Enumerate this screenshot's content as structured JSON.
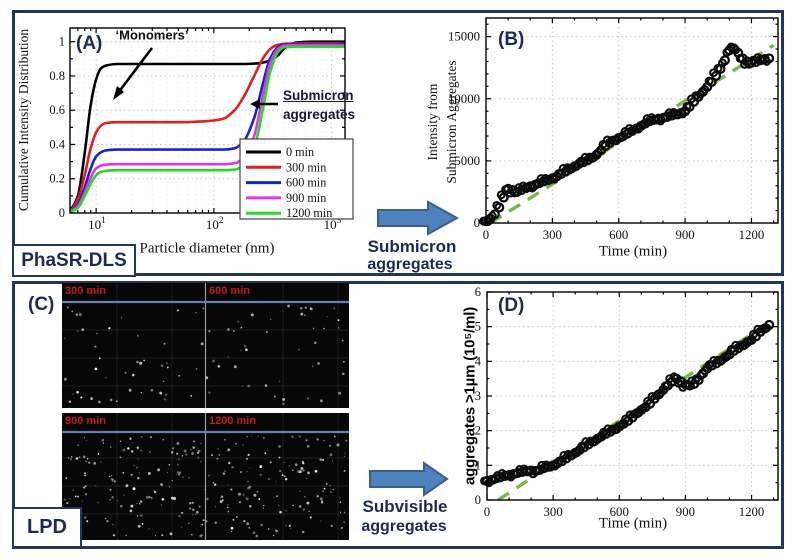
{
  "figure": {
    "sections": [
      {
        "id": "top",
        "label": "PhaSR-DLS"
      },
      {
        "id": "bottom",
        "label": "LPD"
      }
    ],
    "arrows": [
      {
        "line1": "Submicron",
        "line2": "aggregates"
      },
      {
        "line1": "Subvisible",
        "line2": "aggregates"
      }
    ]
  },
  "colors": {
    "navy": "#1b2a55",
    "box_border": "#24365a",
    "arrow_fill": "#4f81bd",
    "arrow_stroke": "#3a5f8f",
    "trend_green": "#7ab648",
    "grid": "#c9c9c9",
    "grid_minor": "#ececec",
    "red_label": "#c11b1b",
    "blue_line": "#637fb7",
    "scatter_black": "#0c0c0c"
  },
  "chart_data": [
    {
      "id": "A",
      "type": "line",
      "panel_label": "(A)",
      "xlabel": "Particle diameter (nm)",
      "ylabel": "Cumulative Intensity Distribution",
      "xscale": "log",
      "xlim": [
        6,
        1300
      ],
      "ylim": [
        0,
        1.08
      ],
      "xticks": [
        10,
        100,
        1000
      ],
      "yticks": [
        0,
        0.2,
        0.4,
        0.6,
        0.8,
        1
      ],
      "grid": true,
      "legend_position": "inside lower right",
      "annotations": {
        "monomers": "‘Monomers’",
        "submicron": "Submicron",
        "submicron2": "aggregates"
      },
      "x": [
        5,
        6,
        7,
        8,
        9,
        10,
        11,
        12,
        15,
        20,
        30,
        50,
        80,
        100,
        120,
        150,
        180,
        220,
        260,
        300,
        350,
        400,
        500,
        700,
        1000,
        2000
      ],
      "series": [
        {
          "name": "0 min",
          "color": "#000000",
          "y": [
            0,
            0.02,
            0.1,
            0.35,
            0.63,
            0.78,
            0.845,
            0.86,
            0.87,
            0.87,
            0.87,
            0.87,
            0.87,
            0.87,
            0.87,
            0.87,
            0.87,
            0.872,
            0.878,
            0.89,
            0.92,
            0.962,
            0.995,
            1.0,
            1.0,
            1.0
          ]
        },
        {
          "name": "300 min",
          "color": "#e02020",
          "y": [
            0,
            0.015,
            0.08,
            0.22,
            0.38,
            0.47,
            0.51,
            0.525,
            0.53,
            0.53,
            0.53,
            0.53,
            0.535,
            0.54,
            0.55,
            0.6,
            0.68,
            0.8,
            0.9,
            0.957,
            0.982,
            0.988,
            0.99,
            0.99,
            0.99,
            0.99
          ]
        },
        {
          "name": "600 min",
          "color": "#1822cf",
          "y": [
            0,
            0.01,
            0.05,
            0.15,
            0.26,
            0.33,
            0.355,
            0.365,
            0.37,
            0.37,
            0.37,
            0.37,
            0.37,
            0.37,
            0.37,
            0.378,
            0.42,
            0.555,
            0.75,
            0.9,
            0.968,
            0.984,
            0.985,
            0.985,
            0.985,
            0.985
          ]
        },
        {
          "name": "900 min",
          "color": "#e335e3",
          "y": [
            0,
            0.01,
            0.04,
            0.12,
            0.205,
            0.26,
            0.277,
            0.282,
            0.285,
            0.285,
            0.285,
            0.285,
            0.285,
            0.285,
            0.285,
            0.29,
            0.325,
            0.45,
            0.68,
            0.87,
            0.958,
            0.978,
            0.98,
            0.98,
            0.98,
            0.98
          ]
        },
        {
          "name": "1200 min",
          "color": "#27d827",
          "y": [
            0,
            0.008,
            0.03,
            0.1,
            0.17,
            0.22,
            0.24,
            0.246,
            0.25,
            0.25,
            0.25,
            0.25,
            0.25,
            0.25,
            0.25,
            0.253,
            0.28,
            0.38,
            0.6,
            0.82,
            0.94,
            0.968,
            0.97,
            0.97,
            0.97,
            0.97
          ]
        }
      ]
    },
    {
      "id": "B",
      "type": "scatter",
      "panel_label": "(B)",
      "xlabel": "Time (min)",
      "ylabel_lines": [
        "Intensity from",
        "Submicron Aggregates"
      ],
      "xlim": [
        0,
        1320
      ],
      "ylim": [
        0,
        16500
      ],
      "xticks": [
        0,
        300,
        600,
        900,
        1200
      ],
      "yticks": [
        0,
        5000,
        10000,
        15000
      ],
      "grid": true,
      "x": [
        0,
        20,
        40,
        60,
        80,
        100,
        120,
        140,
        160,
        180,
        200,
        220,
        240,
        260,
        280,
        300,
        320,
        340,
        360,
        380,
        400,
        420,
        440,
        460,
        480,
        500,
        520,
        540,
        560,
        580,
        600,
        620,
        640,
        660,
        680,
        700,
        720,
        740,
        760,
        780,
        800,
        820,
        840,
        860,
        880,
        900,
        920,
        940,
        960,
        980,
        1000,
        1020,
        1040,
        1060,
        1080,
        1100,
        1120,
        1140,
        1160,
        1180,
        1200,
        1220,
        1240,
        1260,
        1280
      ],
      "y": [
        150,
        350,
        700,
        1250,
        2050,
        2750,
        2650,
        2500,
        2650,
        2800,
        2950,
        3050,
        3200,
        3350,
        3450,
        3600,
        3750,
        3950,
        4150,
        4350,
        4550,
        4750,
        4900,
        5050,
        5250,
        5500,
        5850,
        6200,
        6450,
        6650,
        6850,
        7000,
        7200,
        7400,
        7600,
        7800,
        8000,
        8200,
        8300,
        8400,
        8450,
        8550,
        8650,
        8750,
        8850,
        9000,
        9350,
        9750,
        10150,
        10550,
        10950,
        11350,
        11850,
        12400,
        13100,
        13900,
        14050,
        13700,
        13250,
        13000,
        12900,
        12950,
        13100,
        13200,
        13250
      ],
      "trend": {
        "style": "dashed",
        "from": [
          20,
          0
        ],
        "to": [
          1300,
          14300
        ]
      }
    },
    {
      "id": "C",
      "type": "image-panel",
      "panel_label": "(C)",
      "strips": [
        {
          "labels": [
            "300 min",
            "600 min"
          ],
          "dot_count": 95
        },
        {
          "labels": [
            "900 min",
            "1200 min"
          ],
          "dot_count": 290
        }
      ]
    },
    {
      "id": "D",
      "type": "scatter",
      "panel_label": "(D)",
      "xlabel": "Time (min)",
      "ylabel": "aggregates >1µm  (10⁵/ml)",
      "xlim": [
        0,
        1320
      ],
      "ylim": [
        0,
        6
      ],
      "xticks": [
        0,
        300,
        600,
        900,
        1200
      ],
      "yticks": [
        0,
        1,
        2,
        3,
        4,
        5,
        6
      ],
      "grid": true,
      "x": [
        0,
        20,
        40,
        60,
        80,
        100,
        120,
        140,
        160,
        180,
        200,
        220,
        240,
        260,
        280,
        300,
        320,
        340,
        360,
        380,
        400,
        420,
        440,
        460,
        480,
        500,
        520,
        540,
        560,
        580,
        600,
        620,
        640,
        660,
        680,
        700,
        720,
        740,
        760,
        780,
        800,
        820,
        840,
        860,
        880,
        900,
        920,
        940,
        960,
        980,
        1000,
        1020,
        1040,
        1060,
        1080,
        1100,
        1120,
        1140,
        1160,
        1180,
        1200,
        1220,
        1240,
        1260,
        1280
      ],
      "y": [
        0.55,
        0.58,
        0.62,
        0.65,
        0.69,
        0.72,
        0.75,
        0.78,
        0.81,
        0.83,
        0.85,
        0.84,
        0.87,
        0.92,
        0.96,
        1.0,
        1.06,
        1.12,
        1.2,
        1.28,
        1.36,
        1.44,
        1.52,
        1.6,
        1.68,
        1.76,
        1.84,
        1.91,
        1.97,
        2.04,
        2.12,
        2.2,
        2.28,
        2.38,
        2.5,
        2.6,
        2.68,
        2.78,
        2.92,
        3.05,
        3.18,
        3.3,
        3.42,
        3.5,
        3.42,
        3.33,
        3.3,
        3.35,
        3.46,
        3.65,
        3.8,
        3.88,
        3.94,
        4.02,
        4.12,
        4.2,
        4.3,
        4.38,
        4.46,
        4.55,
        4.62,
        4.72,
        4.85,
        4.95,
        5.05
      ],
      "trend": {
        "style": "dashed",
        "from": [
          50,
          0
        ],
        "to": [
          1300,
          5.2
        ]
      }
    }
  ]
}
